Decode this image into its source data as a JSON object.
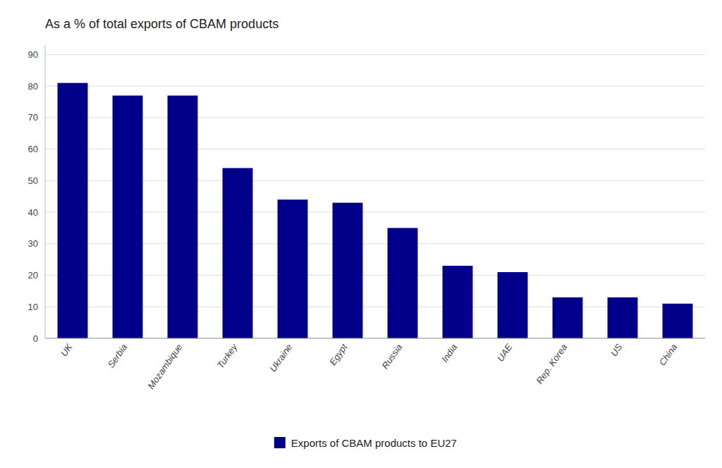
{
  "chart_data": {
    "type": "bar",
    "title": "As a % of total exports of CBAM products",
    "categories": [
      "UK",
      "Serbia",
      "Mozambique",
      "Turkey",
      "Ukraine",
      "Egypt",
      "Russia",
      "India",
      "UAE",
      "Rep. Korea",
      "US",
      "China"
    ],
    "series": [
      {
        "name": "Exports of CBAM products to EU27",
        "color": "#00008B",
        "values": [
          81,
          77,
          77,
          54,
          44,
          43,
          35,
          23,
          21,
          13,
          13,
          11
        ]
      }
    ],
    "ylim": [
      0,
      93
    ],
    "yticks": [
      0,
      10,
      20,
      30,
      40,
      50,
      60,
      70,
      80,
      90
    ],
    "grid": true,
    "legend": "bottom"
  }
}
